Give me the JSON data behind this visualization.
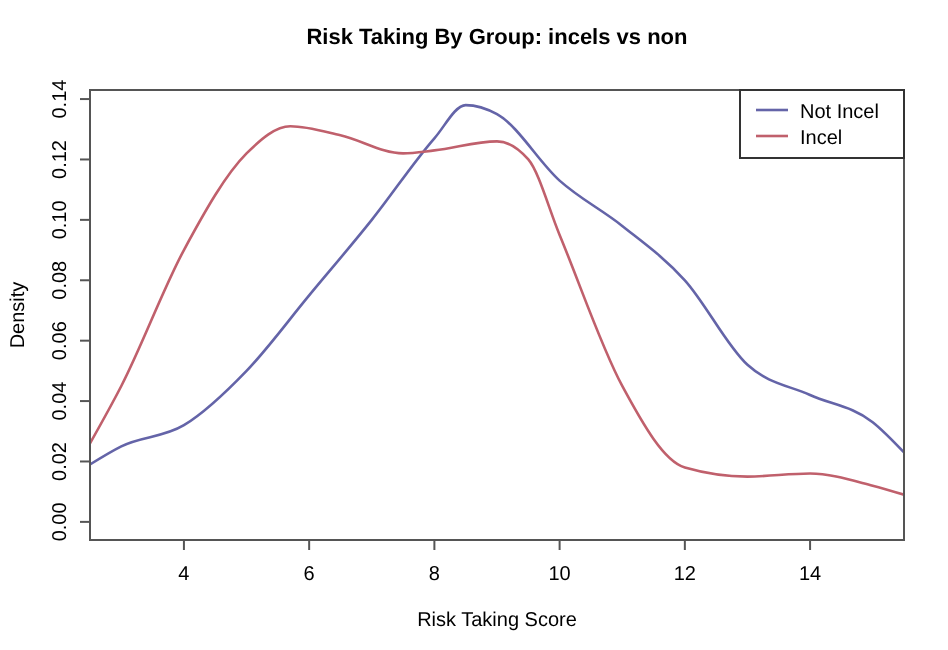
{
  "chart_data": {
    "type": "line",
    "title": "Risk Taking By Group: incels vs non",
    "xlabel": "Risk Taking Score",
    "ylabel": "Density",
    "xlim": [
      2.5,
      15.5
    ],
    "xticks": [
      4,
      6,
      8,
      10,
      12,
      14
    ],
    "ylim": [
      -0.006,
      0.143
    ],
    "yticks": [
      {
        "value": 0,
        "label": "0.00"
      },
      {
        "value": 0.02,
        "label": "0.02"
      },
      {
        "value": 0.04,
        "label": "0.04"
      },
      {
        "value": 0.06,
        "label": "0.06"
      },
      {
        "value": 0.08,
        "label": "0.08"
      },
      {
        "value": 0.1,
        "label": "0.10"
      },
      {
        "value": 0.12,
        "label": "0.12"
      },
      {
        "value": 0.14,
        "label": "0.14"
      }
    ],
    "legend": "top right",
    "grid": false,
    "series": [
      {
        "name": "Not Incel",
        "color": "#6464a8",
        "x": [
          2.5,
          3,
          4,
          5,
          6,
          7,
          8,
          8.5,
          9,
          10,
          11,
          12,
          13,
          14,
          15,
          15.5
        ],
        "values": [
          0.019,
          0.025,
          0.032,
          0.05,
          0.075,
          0.1,
          0.127,
          0.138,
          0.135,
          0.113,
          0.098,
          0.08,
          0.052,
          0.042,
          0.033,
          0.023
        ]
      },
      {
        "name": "Incel",
        "color": "#c0606c",
        "x": [
          2.5,
          3,
          4,
          5,
          5.7,
          6.5,
          7.5,
          8,
          9,
          9.5,
          10,
          11,
          12,
          13,
          14,
          15,
          15.5
        ],
        "values": [
          0.026,
          0.045,
          0.09,
          0.122,
          0.131,
          0.128,
          0.122,
          0.123,
          0.126,
          0.12,
          0.095,
          0.045,
          0.018,
          0.015,
          0.016,
          0.012,
          0.009
        ]
      }
    ]
  }
}
